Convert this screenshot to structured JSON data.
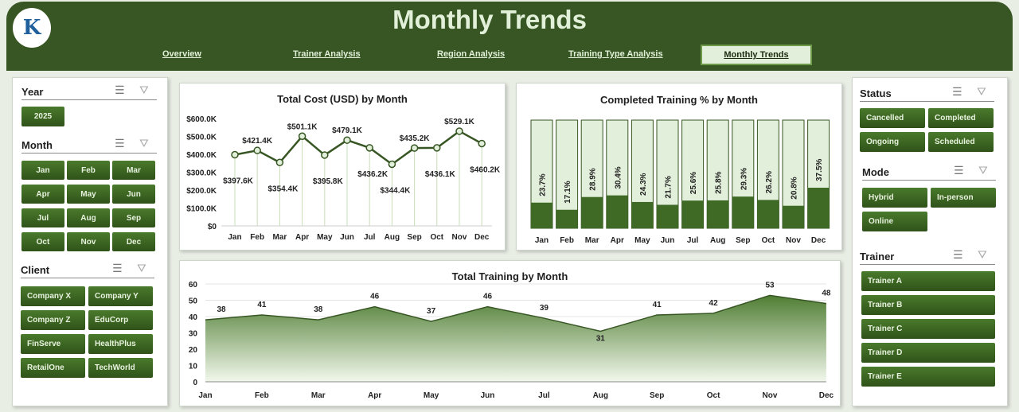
{
  "header": {
    "title": "Monthly Trends",
    "logo_text": "K",
    "nav": [
      {
        "label": "Overview"
      },
      {
        "label": "Trainer Analysis"
      },
      {
        "label": "Region Analysis"
      },
      {
        "label": "Training Type Analysis"
      },
      {
        "label": "Monthly Trends",
        "active": true
      }
    ]
  },
  "left": {
    "year": {
      "title": "Year",
      "items": [
        "2025"
      ]
    },
    "month": {
      "title": "Month",
      "items": [
        "Jan",
        "Feb",
        "Mar",
        "Apr",
        "May",
        "Jun",
        "Jul",
        "Aug",
        "Sep",
        "Oct",
        "Nov",
        "Dec"
      ]
    },
    "client": {
      "title": "Client",
      "items": [
        "Company X",
        "Company Y",
        "Company Z",
        "EduCorp",
        "FinServe",
        "HealthPlus",
        "RetailOne",
        "TechWorld"
      ]
    }
  },
  "right": {
    "status": {
      "title": "Status",
      "items": [
        "Cancelled",
        "Completed",
        "Ongoing",
        "Scheduled"
      ]
    },
    "mode": {
      "title": "Mode",
      "items": [
        "Hybrid",
        "In-person",
        "Online"
      ]
    },
    "trainer": {
      "title": "Trainer",
      "items": [
        "Trainer A",
        "Trainer B",
        "Trainer C",
        "Trainer D",
        "Trainer E"
      ]
    }
  },
  "icons": {
    "multi_select": "multi-select-icon",
    "clear_filter": "clear-filter-icon"
  },
  "colors": {
    "brand": "#375623",
    "button": "#3d6a23",
    "light": "#e2efda"
  },
  "chart_data": [
    {
      "type": "line",
      "title": "Total Cost (USD) by Month",
      "categories": [
        "Jan",
        "Feb",
        "Mar",
        "Apr",
        "May",
        "Jun",
        "Jul",
        "Aug",
        "Sep",
        "Oct",
        "Nov",
        "Dec"
      ],
      "values": [
        397.6,
        421.4,
        354.4,
        501.1,
        395.8,
        479.1,
        436.2,
        344.4,
        435.2,
        436.1,
        529.1,
        460.2
      ],
      "labels": [
        "$397.6K",
        "$421.4K",
        "$354.4K",
        "$501.1K",
        "$395.8K",
        "$479.1K",
        "$436.2K",
        "$344.4K",
        "$435.2K",
        "$436.1K",
        "$529.1K",
        "$460.2K"
      ],
      "unit": "$K",
      "ylim": [
        0,
        600
      ],
      "yticks": [
        "$0",
        "$100.0K",
        "$200.0K",
        "$300.0K",
        "$400.0K",
        "$500.0K",
        "$600.0K"
      ]
    },
    {
      "type": "bar",
      "title": "Completed Training % by Month",
      "categories": [
        "Jan",
        "Feb",
        "Mar",
        "Apr",
        "May",
        "Jun",
        "Jul",
        "Aug",
        "Sep",
        "Oct",
        "Nov",
        "Dec"
      ],
      "values": [
        23.7,
        17.1,
        28.9,
        30.4,
        24.3,
        21.7,
        25.6,
        25.8,
        29.3,
        26.2,
        20.8,
        37.5
      ],
      "labels": [
        "23.7%",
        "17.1%",
        "28.9%",
        "30.4%",
        "24.3%",
        "21.7%",
        "25.6%",
        "25.8%",
        "29.3%",
        "26.2%",
        "20.8%",
        "37.5%"
      ],
      "ylim": [
        0,
        100
      ]
    },
    {
      "type": "area",
      "title": "Total Training by Month",
      "categories": [
        "Jan",
        "Feb",
        "Mar",
        "Apr",
        "May",
        "Jun",
        "Jul",
        "Aug",
        "Sep",
        "Oct",
        "Nov",
        "Dec"
      ],
      "values": [
        38,
        41,
        38,
        46,
        37,
        46,
        39,
        31,
        41,
        42,
        53,
        48
      ],
      "ylim": [
        0,
        60
      ],
      "yticks": [
        "0",
        "10",
        "20",
        "30",
        "40",
        "50",
        "60"
      ]
    }
  ]
}
